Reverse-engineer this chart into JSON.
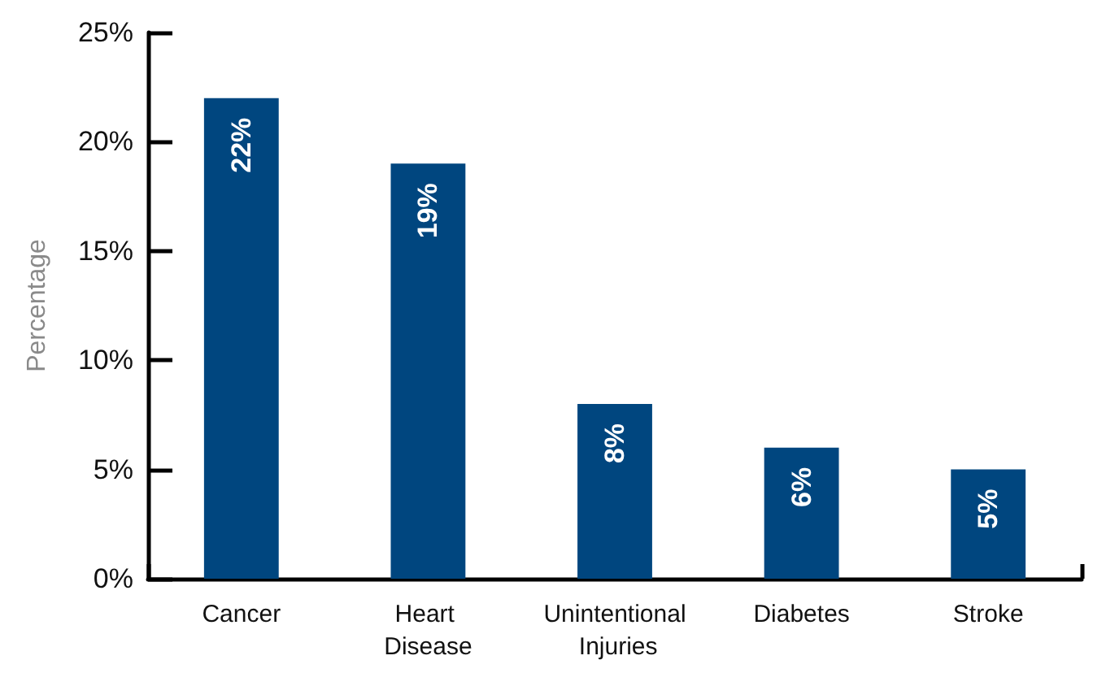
{
  "chart_data": {
    "type": "bar",
    "ylabel": "Percentage",
    "categories": [
      "Cancer",
      "Heart Disease",
      "Unintentional Injuries",
      "Diabetes",
      "Stroke"
    ],
    "values": [
      22,
      19,
      8,
      6,
      5
    ],
    "color": "#00467f",
    "value_labels": [
      "22%",
      "19%",
      "8%",
      "6%",
      "5%"
    ],
    "ylim": [
      0,
      25
    ],
    "yticks": [
      {
        "value": 0,
        "label": "0%"
      },
      {
        "value": 5,
        "label": "5%"
      },
      {
        "value": 10,
        "label": "10%"
      },
      {
        "value": 15,
        "label": "15%"
      },
      {
        "value": 20,
        "label": "20%"
      },
      {
        "value": 25,
        "label": "25%"
      }
    ],
    "grid": false
  }
}
